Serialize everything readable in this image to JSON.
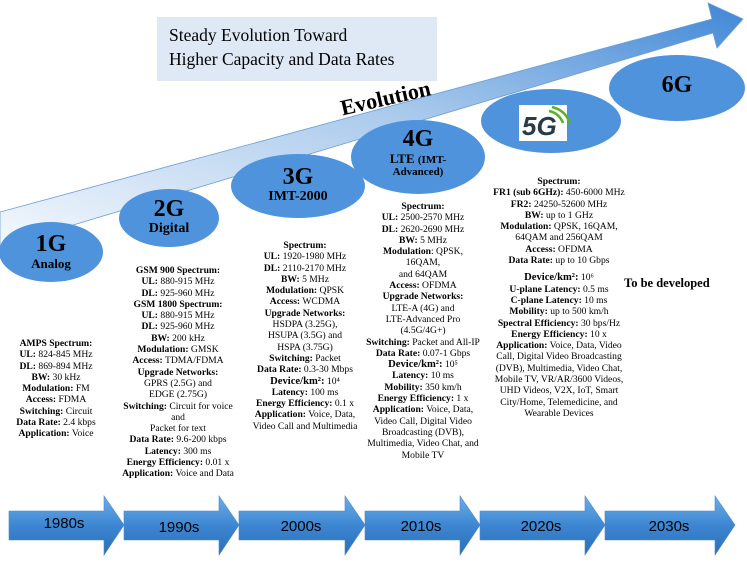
{
  "title": [
    "Steady Evolution Toward",
    "Higher Capacity and Data Rates"
  ],
  "evolution_label": "Evolution",
  "generations": [
    {
      "name": "1G",
      "sub": "Analog"
    },
    {
      "name": "2G",
      "sub": "Digital"
    },
    {
      "name": "3G",
      "sub": "IMT-2000"
    },
    {
      "name": "4G",
      "sub": "LTE",
      "sub_small": "(IMT-",
      "sub2": "Advanced)"
    },
    {
      "name": "5G",
      "logo_text": "5G"
    },
    {
      "name": "6G"
    }
  ],
  "to_be_developed": "To be developed",
  "decades": [
    "1980s",
    "1990s",
    "2000s",
    "2010s",
    "2020s",
    "2030s"
  ],
  "g1": [
    [
      "AMPS Spectrum:",
      ""
    ],
    [
      "UL:",
      " 824-845 MHz"
    ],
    [
      "DL:",
      " 869-894 MHz"
    ],
    [
      "BW:",
      " 30 kHz"
    ],
    [
      "Modulation:",
      " FM"
    ],
    [
      "Access:",
      " FDMA"
    ],
    [
      "Switching:",
      " Circuit"
    ],
    [
      "Data Rate:",
      " 2.4 kbps"
    ],
    [
      "Application:",
      " Voice"
    ]
  ],
  "g2": [
    [
      "GSM 900 Spectrum:",
      ""
    ],
    [
      "UL:",
      " 880-915 MHz"
    ],
    [
      "DL:",
      " 925-960 MHz"
    ],
    [
      "GSM 1800 Spectrum:",
      ""
    ],
    [
      "UL:",
      " 880-915 MHz"
    ],
    [
      "DL:",
      " 925-960 MHz"
    ],
    [
      "BW:",
      " 200 kHz"
    ],
    [
      "Modulation:",
      " GMSK"
    ],
    [
      "Access:",
      " TDMA/FDMA"
    ],
    [
      "Upgrade Networks:",
      ""
    ],
    [
      "",
      "GPRS (2.5G) and"
    ],
    [
      "",
      "EDGE (2.75G)"
    ],
    [
      "Switching:",
      " Circuit for voice"
    ],
    [
      "",
      "and"
    ],
    [
      "",
      "Packet for text"
    ],
    [
      "Data Rate:",
      " 9.6-200 kbps"
    ],
    [
      "Latency:",
      " 300 ms"
    ],
    [
      "Energy Efficiency:",
      " 0.01 x"
    ],
    [
      "Application:",
      " Voice and Data"
    ]
  ],
  "g3": [
    [
      "Spectrum:",
      ""
    ],
    [
      "UL:",
      " 1920-1980 MHz"
    ],
    [
      "DL:",
      " 2110-2170 MHz"
    ],
    [
      "BW:",
      " 5 MHz"
    ],
    [
      "Modulation:",
      " QPSK"
    ],
    [
      "Access:",
      " WCDMA"
    ],
    [
      "Upgrade Networks:",
      ""
    ],
    [
      "",
      "HSDPA (3.25G),"
    ],
    [
      "",
      "HSUPA (3.5G) and"
    ],
    [
      "",
      "HSPA (3.75G)"
    ],
    [
      "Switching:",
      " Packet"
    ],
    [
      "Data Rate:",
      " 0.3-30 Mbps"
    ],
    [
      "Device/km²:",
      " 10⁴"
    ],
    [
      "Latency:",
      " 100 ms"
    ],
    [
      "Energy Efficiency:",
      " 0.1 x"
    ],
    [
      "Application:",
      " Voice, Data,"
    ],
    [
      "",
      "Video Call and Multimedia"
    ]
  ],
  "g4": [
    [
      "Spectrum:",
      ""
    ],
    [
      "UL:",
      " 2500-2570 MHz"
    ],
    [
      "DL:",
      " 2620-2690 MHz"
    ],
    [
      "BW:",
      " 5 MHz"
    ],
    [
      "Modulation",
      ": QPSK, 16QAM,"
    ],
    [
      "",
      "and 64QAM"
    ],
    [
      "Access:",
      " OFDMA"
    ],
    [
      "Upgrade Networks:",
      ""
    ],
    [
      "",
      "LTE-A (4G) and"
    ],
    [
      "",
      "LTE-Advanced Pro"
    ],
    [
      "",
      "(4.5G/4G+)"
    ],
    [
      "Switching:",
      " Packet and All-IP"
    ],
    [
      "Data Rate:",
      " 0.07-1 Gbps"
    ],
    [
      "Device/km²:",
      " 10⁵"
    ],
    [
      "Latency:",
      " 10 ms"
    ],
    [
      "Mobility:",
      " 350 km/h"
    ],
    [
      "Energy Efficiency:",
      " 1 x"
    ],
    [
      "Application:",
      " Voice, Data,"
    ],
    [
      "",
      "Video Call, Digital Video"
    ],
    [
      "",
      "Broadcasting (DVB),"
    ],
    [
      "",
      "Multimedia, Video Chat, and"
    ],
    [
      "",
      "Mobile TV"
    ]
  ],
  "g5": [
    [
      "Spectrum:",
      ""
    ],
    [
      "FR1 (sub 6GHz):",
      " 450-6000 MHz"
    ],
    [
      "FR2:",
      " 24250-52600 MHz"
    ],
    [
      "BW:",
      " up to 1 GHz"
    ],
    [
      "Modulation:",
      " QPSK, 16QAM,"
    ],
    [
      "",
      "64QAM and 256QAM"
    ],
    [
      "Access:",
      " OFDMA"
    ],
    [
      "Data Rate:",
      " up to 10 Gbps"
    ],
    [
      "",
      ""
    ],
    [
      "Device/km²:",
      " 10⁶"
    ],
    [
      "U-plane Latency:",
      " 0.5 ms"
    ],
    [
      "C-plane Latency:",
      " 10 ms"
    ],
    [
      "Mobility:",
      " up to 500 km/h"
    ],
    [
      "Spectral Efficiency:",
      " 30 bps/Hz"
    ],
    [
      "Energy Efficiency:",
      " 10 x"
    ],
    [
      "Application:",
      " Voice, Data, Video"
    ],
    [
      "",
      "Call, Digital Video Broadcasting"
    ],
    [
      "",
      "(DVB), Multimedia, Video Chat,"
    ],
    [
      "",
      "Mobile TV, VR/AR/3600 Videos,"
    ],
    [
      "",
      "UHD Videos, V2X, IoT, Smart"
    ],
    [
      "",
      "City/Home, Telemedicine, and"
    ],
    [
      "",
      "Wearable Devices"
    ]
  ],
  "colors": {
    "oval": "#4f93dc",
    "arrow_dark": "#1f6fb8",
    "arrow_light": "#5aa0e0",
    "title_bg": "#dfe9f5"
  }
}
